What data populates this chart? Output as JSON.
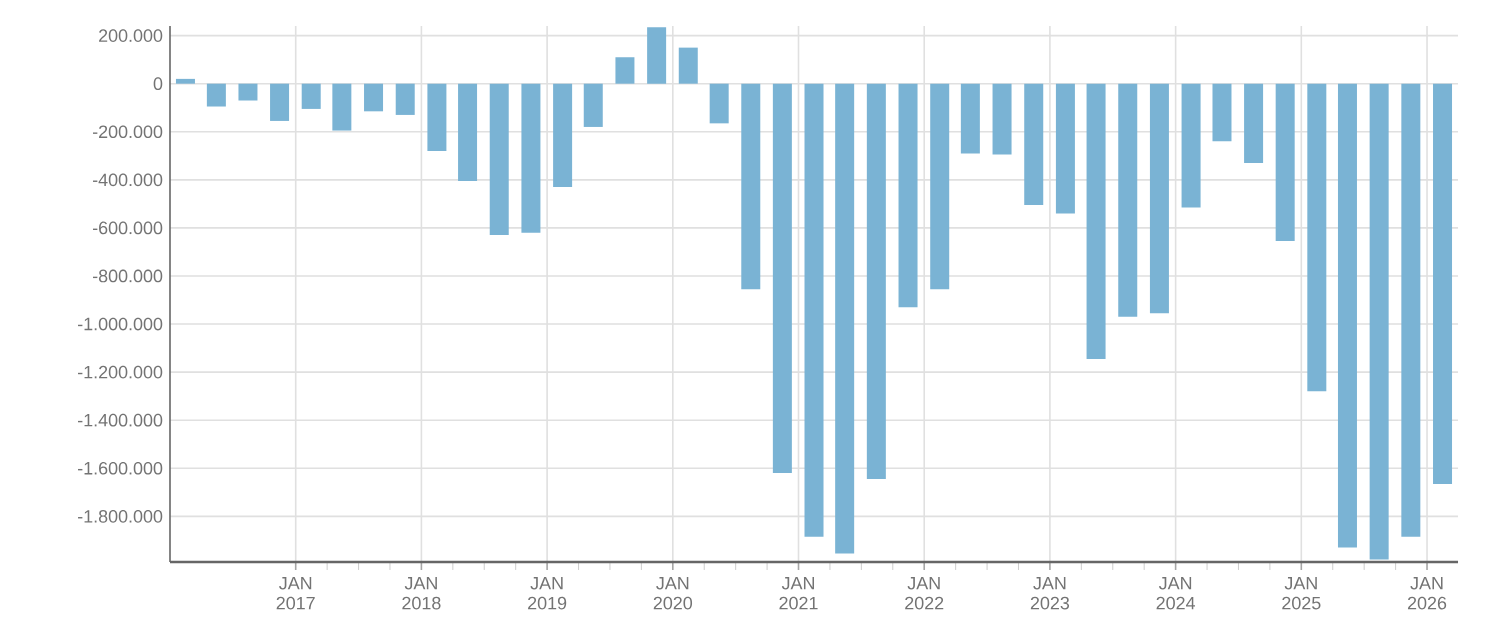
{
  "chart_data": {
    "type": "bar",
    "color": "#7ab3d4",
    "grid": true,
    "x": [
      "2016-02-15",
      "2016-05-15",
      "2016-08-15",
      "2016-11-15",
      "2017-02-15",
      "2017-05-15",
      "2017-08-15",
      "2017-11-15",
      "2018-02-15",
      "2018-05-15",
      "2018-08-15",
      "2018-11-15",
      "2019-02-15",
      "2019-05-15",
      "2019-08-15",
      "2019-11-15",
      "2020-02-15",
      "2020-05-15",
      "2020-08-15",
      "2020-11-15",
      "2021-02-15",
      "2021-05-15",
      "2021-08-15",
      "2021-11-15",
      "2022-02-15",
      "2022-05-15",
      "2022-08-15",
      "2022-11-15",
      "2023-02-15",
      "2023-05-15",
      "2023-08-15",
      "2023-11-15",
      "2024-02-15",
      "2024-05-15",
      "2024-08-15",
      "2024-11-15",
      "2025-02-15",
      "2025-05-15",
      "2025-08-15",
      "2025-11-15",
      "2026-02-15"
    ],
    "values": [
      20000,
      -95000,
      -70000,
      -155000,
      -105000,
      -195000,
      -115000,
      -130000,
      -280000,
      -405000,
      -630000,
      -620000,
      -430000,
      -180000,
      110000,
      235000,
      150000,
      -165000,
      -855000,
      -1620000,
      -1885000,
      -1955000,
      -1645000,
      -930000,
      -855000,
      -290000,
      -295000,
      -505000,
      -540000,
      -1145000,
      -970000,
      -955000,
      -515000,
      -240000,
      -330000,
      -655000,
      -1280000,
      -1930000,
      -1980000,
      -1885000,
      -1665000
    ],
    "xlim": [
      "2016-01-01",
      "2026-04-01"
    ],
    "xticks": [
      {
        "value": "2017-01-01",
        "label": "JAN 2017"
      },
      {
        "value": "2018-01-01",
        "label": "JAN 2018"
      },
      {
        "value": "2019-01-01",
        "label": "JAN 2019"
      },
      {
        "value": "2020-01-01",
        "label": "JAN 2020"
      },
      {
        "value": "2021-01-01",
        "label": "JAN 2021"
      },
      {
        "value": "2022-01-01",
        "label": "JAN 2022"
      },
      {
        "value": "2023-01-01",
        "label": "JAN 2023"
      },
      {
        "value": "2024-01-01",
        "label": "JAN 2024"
      },
      {
        "value": "2025-01-01",
        "label": "JAN 2025"
      },
      {
        "value": "2026-01-01",
        "label": "JAN 2026"
      }
    ],
    "ylim": [
      -1990000,
      240000
    ],
    "yticks": [
      {
        "value": 200000,
        "label": "200.000"
      },
      {
        "value": 0,
        "label": "0"
      },
      {
        "value": -200000,
        "label": "-200.000"
      },
      {
        "value": -400000,
        "label": "-400.000"
      },
      {
        "value": -600000,
        "label": "-600.000"
      },
      {
        "value": -800000,
        "label": "-800.000"
      },
      {
        "value": -1000000,
        "label": "-1.000.000"
      },
      {
        "value": -1200000,
        "label": "-1.200.000"
      },
      {
        "value": -1400000,
        "label": "-1.400.000"
      },
      {
        "value": -1600000,
        "label": "-1.600.000"
      },
      {
        "value": -1800000,
        "label": "-1.800.000"
      }
    ]
  }
}
